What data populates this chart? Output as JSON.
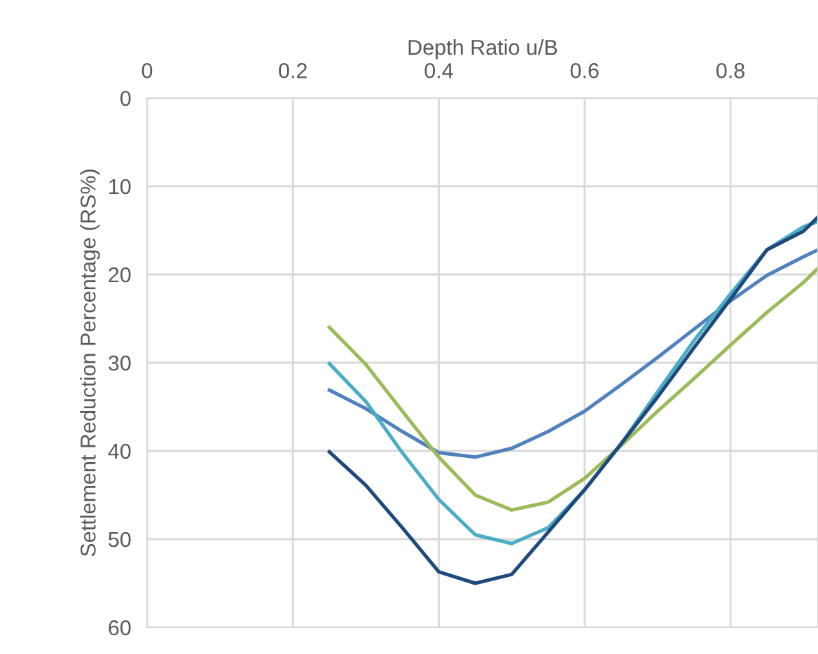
{
  "chart_data": {
    "type": "line",
    "xlabel": "Depth Ratio u/B",
    "ylabel": "Settlement Reduction Percentage (RS%)",
    "xlim": [
      0,
      0.92
    ],
    "xticks": [
      0,
      0.2,
      0.4,
      0.6,
      0.8
    ],
    "ylim": [
      60,
      0
    ],
    "yticks": [
      0,
      10,
      20,
      30,
      40,
      50,
      60
    ],
    "grid": true,
    "marker": "none",
    "line_style": "solid",
    "series": [
      {
        "color": "#4f81bd",
        "x": [
          0.25,
          0.3,
          0.35,
          0.4,
          0.45,
          0.5,
          0.55,
          0.6,
          0.65,
          0.7,
          0.75,
          0.8,
          0.85,
          0.9,
          0.92
        ],
        "values": [
          33.1,
          35.2,
          37.8,
          40.2,
          40.7,
          39.7,
          37.8,
          35.5,
          32.5,
          29.4,
          26.2,
          23.0,
          20.1,
          18.0,
          17.2
        ]
      },
      {
        "color": "#9bbb59",
        "x": [
          0.25,
          0.3,
          0.35,
          0.4,
          0.45,
          0.5,
          0.55,
          0.6,
          0.65,
          0.7,
          0.75,
          0.8,
          0.85,
          0.9,
          0.92
        ],
        "values": [
          26.0,
          30.2,
          35.5,
          40.7,
          45.0,
          46.7,
          45.8,
          43.1,
          39.4,
          35.5,
          31.8,
          28.0,
          24.3,
          20.9,
          19.3
        ]
      },
      {
        "color": "#4bacc6",
        "x": [
          0.25,
          0.3,
          0.35,
          0.4,
          0.45,
          0.5,
          0.55,
          0.6,
          0.65,
          0.7,
          0.75,
          0.8,
          0.85,
          0.9,
          0.92
        ],
        "values": [
          30.1,
          34.4,
          40.2,
          45.5,
          49.5,
          50.5,
          48.7,
          44.4,
          39.2,
          33.3,
          27.5,
          22.2,
          17.2,
          14.6,
          14.0
        ]
      },
      {
        "color": "#1f497d",
        "x": [
          0.25,
          0.3,
          0.35,
          0.4,
          0.45,
          0.5,
          0.55,
          0.6,
          0.65,
          0.7,
          0.75,
          0.8,
          0.85,
          0.9,
          0.92
        ],
        "values": [
          40.1,
          43.9,
          48.7,
          53.7,
          55.0,
          54.0,
          49.2,
          44.4,
          39.2,
          33.9,
          28.3,
          22.8,
          17.2,
          15.1,
          13.5
        ]
      }
    ]
  }
}
